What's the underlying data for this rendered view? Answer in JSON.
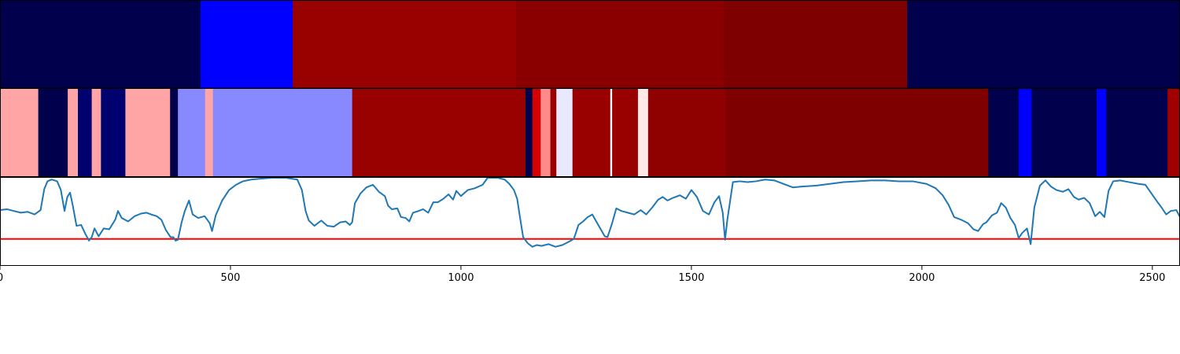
{
  "chart_data": {
    "type": "heatmap",
    "xlim": [
      0,
      2560
    ],
    "x_ticks": [
      {
        "value": 0,
        "label": "0"
      },
      {
        "value": 500,
        "label": "500"
      },
      {
        "value": 1000,
        "label": "1000"
      },
      {
        "value": 1500,
        "label": "1500"
      },
      {
        "value": 2000,
        "label": "2000"
      },
      {
        "value": 2500,
        "label": "2500"
      }
    ],
    "top_band": {
      "segments": [
        {
          "start": 0,
          "end": 435,
          "color": "#00004c"
        },
        {
          "start": 435,
          "end": 635,
          "color": "#0000ff"
        },
        {
          "start": 635,
          "end": 1120,
          "color": "#990000"
        },
        {
          "start": 1120,
          "end": 1570,
          "color": "#8a0000"
        },
        {
          "start": 1570,
          "end": 1968,
          "color": "#7f0000"
        },
        {
          "start": 1968,
          "end": 2560,
          "color": "#00004c"
        }
      ]
    },
    "middle_band": {
      "segments": [
        {
          "start": 0,
          "end": 83,
          "color": "#ffa5a5"
        },
        {
          "start": 83,
          "end": 147,
          "color": "#00004c"
        },
        {
          "start": 147,
          "end": 169,
          "color": "#ffa5a5"
        },
        {
          "start": 169,
          "end": 199,
          "color": "#00006e"
        },
        {
          "start": 199,
          "end": 219,
          "color": "#ffa5a5"
        },
        {
          "start": 219,
          "end": 272,
          "color": "#00006e"
        },
        {
          "start": 272,
          "end": 369,
          "color": "#ffa5a5"
        },
        {
          "start": 369,
          "end": 386,
          "color": "#00004c"
        },
        {
          "start": 386,
          "end": 445,
          "color": "#8888ff"
        },
        {
          "start": 445,
          "end": 462,
          "color": "#ffa5a5"
        },
        {
          "start": 462,
          "end": 764,
          "color": "#8888ff"
        },
        {
          "start": 764,
          "end": 1140,
          "color": "#990000"
        },
        {
          "start": 1140,
          "end": 1155,
          "color": "#00004c"
        },
        {
          "start": 1155,
          "end": 1173,
          "color": "#d40000"
        },
        {
          "start": 1173,
          "end": 1194,
          "color": "#ff8a8a"
        },
        {
          "start": 1194,
          "end": 1207,
          "color": "#990000"
        },
        {
          "start": 1207,
          "end": 1242,
          "color": "#e8e8ff"
        },
        {
          "start": 1242,
          "end": 1324,
          "color": "#990000"
        },
        {
          "start": 1324,
          "end": 1328,
          "color": "#ffffff"
        },
        {
          "start": 1328,
          "end": 1384,
          "color": "#990000"
        },
        {
          "start": 1384,
          "end": 1406,
          "color": "#ffe8e8"
        },
        {
          "start": 1406,
          "end": 1575,
          "color": "#8f0000"
        },
        {
          "start": 1575,
          "end": 2144,
          "color": "#7f0000"
        },
        {
          "start": 2144,
          "end": 2210,
          "color": "#00004c"
        },
        {
          "start": 2210,
          "end": 2238,
          "color": "#0000ff"
        },
        {
          "start": 2238,
          "end": 2379,
          "color": "#00004c"
        },
        {
          "start": 2379,
          "end": 2400,
          "color": "#0000ff"
        },
        {
          "start": 2400,
          "end": 2533,
          "color": "#00004c"
        },
        {
          "start": 2533,
          "end": 2560,
          "color": "#a00000"
        }
      ]
    },
    "line_panel": {
      "series_color": "#1f77b4",
      "threshold": {
        "y": 0.3,
        "color": "#ff0000"
      },
      "ylim": [
        0,
        1
      ],
      "points": [
        [
          0,
          0.63
        ],
        [
          15,
          0.64
        ],
        [
          30,
          0.62
        ],
        [
          45,
          0.6
        ],
        [
          60,
          0.61
        ],
        [
          75,
          0.58
        ],
        [
          88,
          0.63
        ],
        [
          96,
          0.87
        ],
        [
          103,
          0.96
        ],
        [
          112,
          0.98
        ],
        [
          124,
          0.96
        ],
        [
          132,
          0.86
        ],
        [
          140,
          0.62
        ],
        [
          146,
          0.78
        ],
        [
          152,
          0.83
        ],
        [
          158,
          0.68
        ],
        [
          166,
          0.45
        ],
        [
          176,
          0.46
        ],
        [
          185,
          0.36
        ],
        [
          193,
          0.28
        ],
        [
          199,
          0.32
        ],
        [
          205,
          0.42
        ],
        [
          214,
          0.33
        ],
        [
          225,
          0.42
        ],
        [
          237,
          0.41
        ],
        [
          250,
          0.52
        ],
        [
          256,
          0.62
        ],
        [
          264,
          0.54
        ],
        [
          278,
          0.5
        ],
        [
          292,
          0.56
        ],
        [
          306,
          0.59
        ],
        [
          318,
          0.6
        ],
        [
          328,
          0.58
        ],
        [
          340,
          0.56
        ],
        [
          350,
          0.52
        ],
        [
          360,
          0.4
        ],
        [
          370,
          0.32
        ],
        [
          376,
          0.32
        ],
        [
          381,
          0.28
        ],
        [
          386,
          0.29
        ],
        [
          394,
          0.49
        ],
        [
          401,
          0.62
        ],
        [
          410,
          0.74
        ],
        [
          418,
          0.58
        ],
        [
          430,
          0.54
        ],
        [
          444,
          0.56
        ],
        [
          455,
          0.48
        ],
        [
          460,
          0.39
        ],
        [
          468,
          0.57
        ],
        [
          482,
          0.74
        ],
        [
          497,
          0.86
        ],
        [
          512,
          0.92
        ],
        [
          527,
          0.96
        ],
        [
          545,
          0.98
        ],
        [
          565,
          0.99
        ],
        [
          590,
          1.0
        ],
        [
          620,
          1.0
        ],
        [
          645,
          0.98
        ],
        [
          655,
          0.86
        ],
        [
          663,
          0.62
        ],
        [
          670,
          0.51
        ],
        [
          682,
          0.45
        ],
        [
          697,
          0.51
        ],
        [
          710,
          0.45
        ],
        [
          724,
          0.44
        ],
        [
          738,
          0.49
        ],
        [
          750,
          0.5
        ],
        [
          759,
          0.46
        ],
        [
          764,
          0.49
        ],
        [
          770,
          0.71
        ],
        [
          782,
          0.82
        ],
        [
          795,
          0.89
        ],
        [
          809,
          0.92
        ],
        [
          822,
          0.84
        ],
        [
          835,
          0.79
        ],
        [
          842,
          0.68
        ],
        [
          850,
          0.64
        ],
        [
          862,
          0.65
        ],
        [
          870,
          0.55
        ],
        [
          880,
          0.54
        ],
        [
          888,
          0.5
        ],
        [
          896,
          0.6
        ],
        [
          908,
          0.62
        ],
        [
          918,
          0.64
        ],
        [
          929,
          0.6
        ],
        [
          940,
          0.72
        ],
        [
          950,
          0.72
        ],
        [
          962,
          0.76
        ],
        [
          973,
          0.81
        ],
        [
          983,
          0.75
        ],
        [
          990,
          0.85
        ],
        [
          1000,
          0.79
        ],
        [
          1015,
          0.86
        ],
        [
          1030,
          0.88
        ],
        [
          1047,
          0.92
        ],
        [
          1058,
          1.0
        ],
        [
          1080,
          1.0
        ],
        [
          1095,
          0.98
        ],
        [
          1105,
          0.93
        ],
        [
          1115,
          0.86
        ],
        [
          1122,
          0.76
        ],
        [
          1128,
          0.55
        ],
        [
          1135,
          0.32
        ],
        [
          1145,
          0.25
        ],
        [
          1155,
          0.21
        ],
        [
          1165,
          0.23
        ],
        [
          1175,
          0.22
        ],
        [
          1190,
          0.24
        ],
        [
          1205,
          0.21
        ],
        [
          1220,
          0.23
        ],
        [
          1235,
          0.27
        ],
        [
          1245,
          0.3
        ],
        [
          1255,
          0.46
        ],
        [
          1265,
          0.5
        ],
        [
          1275,
          0.55
        ],
        [
          1285,
          0.58
        ],
        [
          1300,
          0.44
        ],
        [
          1312,
          0.33
        ],
        [
          1318,
          0.32
        ],
        [
          1328,
          0.48
        ],
        [
          1337,
          0.65
        ],
        [
          1348,
          0.62
        ],
        [
          1362,
          0.6
        ],
        [
          1376,
          0.58
        ],
        [
          1390,
          0.63
        ],
        [
          1402,
          0.58
        ],
        [
          1415,
          0.66
        ],
        [
          1428,
          0.75
        ],
        [
          1438,
          0.78
        ],
        [
          1448,
          0.74
        ],
        [
          1460,
          0.77
        ],
        [
          1475,
          0.8
        ],
        [
          1488,
          0.76
        ],
        [
          1500,
          0.86
        ],
        [
          1512,
          0.78
        ],
        [
          1525,
          0.62
        ],
        [
          1538,
          0.58
        ],
        [
          1550,
          0.72
        ],
        [
          1560,
          0.79
        ],
        [
          1568,
          0.6
        ],
        [
          1573,
          0.29
        ],
        [
          1578,
          0.52
        ],
        [
          1590,
          0.95
        ],
        [
          1605,
          0.96
        ],
        [
          1622,
          0.95
        ],
        [
          1640,
          0.96
        ],
        [
          1660,
          0.98
        ],
        [
          1680,
          0.97
        ],
        [
          1700,
          0.93
        ],
        [
          1720,
          0.89
        ],
        [
          1740,
          0.9
        ],
        [
          1770,
          0.91
        ],
        [
          1800,
          0.93
        ],
        [
          1830,
          0.95
        ],
        [
          1860,
          0.96
        ],
        [
          1890,
          0.97
        ],
        [
          1920,
          0.97
        ],
        [
          1950,
          0.96
        ],
        [
          1980,
          0.96
        ],
        [
          2010,
          0.93
        ],
        [
          2030,
          0.88
        ],
        [
          2045,
          0.8
        ],
        [
          2058,
          0.69
        ],
        [
          2070,
          0.55
        ],
        [
          2085,
          0.52
        ],
        [
          2100,
          0.48
        ],
        [
          2112,
          0.41
        ],
        [
          2122,
          0.39
        ],
        [
          2133,
          0.47
        ],
        [
          2140,
          0.49
        ],
        [
          2152,
          0.57
        ],
        [
          2163,
          0.6
        ],
        [
          2172,
          0.71
        ],
        [
          2182,
          0.66
        ],
        [
          2192,
          0.54
        ],
        [
          2202,
          0.46
        ],
        [
          2210,
          0.31
        ],
        [
          2218,
          0.37
        ],
        [
          2228,
          0.42
        ],
        [
          2236,
          0.24
        ],
        [
          2244,
          0.66
        ],
        [
          2256,
          0.91
        ],
        [
          2268,
          0.97
        ],
        [
          2280,
          0.9
        ],
        [
          2292,
          0.86
        ],
        [
          2306,
          0.84
        ],
        [
          2318,
          0.87
        ],
        [
          2330,
          0.78
        ],
        [
          2340,
          0.75
        ],
        [
          2352,
          0.77
        ],
        [
          2364,
          0.71
        ],
        [
          2376,
          0.56
        ],
        [
          2386,
          0.61
        ],
        [
          2396,
          0.55
        ],
        [
          2405,
          0.85
        ],
        [
          2415,
          0.96
        ],
        [
          2430,
          0.97
        ],
        [
          2450,
          0.95
        ],
        [
          2470,
          0.93
        ],
        [
          2485,
          0.92
        ],
        [
          2498,
          0.82
        ],
        [
          2510,
          0.73
        ],
        [
          2520,
          0.66
        ],
        [
          2530,
          0.58
        ],
        [
          2540,
          0.62
        ],
        [
          2552,
          0.63
        ],
        [
          2560,
          0.55
        ]
      ]
    }
  }
}
